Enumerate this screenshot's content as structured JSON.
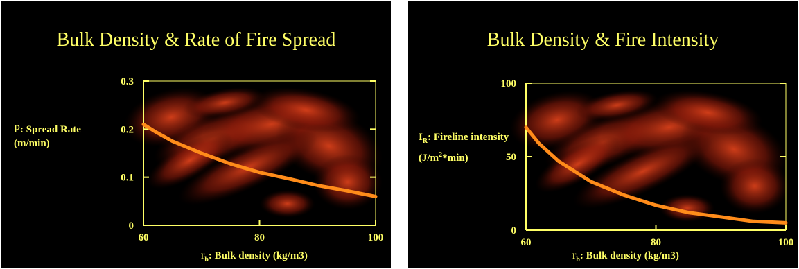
{
  "colors": {
    "background": "#000000",
    "text": "#ffff66",
    "axis": "#ffff66",
    "curve": "#ff8c1a",
    "flame": "#8b1a0a"
  },
  "chart_data": [
    {
      "type": "line",
      "title": "Bulk Density & Rate of Fire Spread",
      "ylabel": {
        "symbol": "P",
        "text": ": Spread Rate (m/min)"
      },
      "xlabel": {
        "symbol": "r",
        "sub": "b",
        "text": ": Bulk density (kg/m3)"
      },
      "xlim": [
        60,
        100
      ],
      "ylim": [
        0,
        0.3
      ],
      "xticks": [
        "60",
        "80",
        "100"
      ],
      "yticks": [
        "0",
        "0.1",
        "0.2",
        "0.3"
      ],
      "grid": false,
      "series": [
        {
          "x": [
            60,
            62,
            65,
            70,
            75,
            80,
            85,
            90,
            95,
            100
          ],
          "values": [
            0.21,
            0.195,
            0.175,
            0.15,
            0.128,
            0.11,
            0.097,
            0.083,
            0.072,
            0.06
          ]
        }
      ]
    },
    {
      "type": "line",
      "title": "Bulk Density & Fire Intensity",
      "ylabel": {
        "symbol": "I",
        "sub": "R",
        "text": ": Fireline intensity (J/m",
        "sup": "2",
        "text2": "*min)"
      },
      "xlabel": {
        "symbol": "r",
        "sub": "b",
        "text": ": Bulk density (kg/m3)"
      },
      "xlim": [
        60,
        100
      ],
      "ylim": [
        0,
        100
      ],
      "xticks": [
        "60",
        "80",
        "100"
      ],
      "yticks": [
        "0",
        "50",
        "100"
      ],
      "grid": false,
      "series": [
        {
          "x": [
            60,
            62,
            65,
            70,
            75,
            80,
            85,
            90,
            95,
            100
          ],
          "values": [
            70,
            59,
            47,
            33,
            24,
            17,
            12,
            9,
            6,
            5
          ]
        }
      ]
    }
  ]
}
